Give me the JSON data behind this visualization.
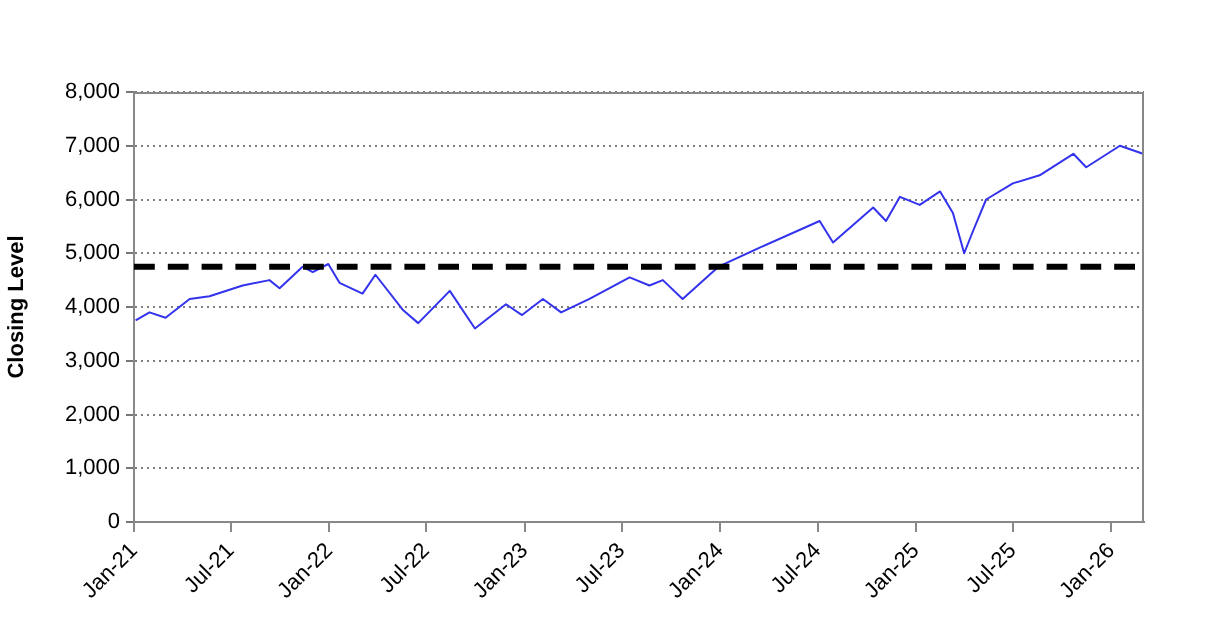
{
  "chart_data": {
    "type": "line",
    "ylabel": "Closing Level",
    "x": [
      "2021-01-04",
      "2021-01-30",
      "2021-03-01",
      "2021-04-15",
      "2021-05-22",
      "2021-07-23",
      "2021-09-11",
      "2021-09-30",
      "2021-11-12",
      "2021-12-01",
      "2021-12-30",
      "2022-01-20",
      "2022-03-04",
      "2022-03-28",
      "2022-05-18",
      "2022-06-16",
      "2022-08-14",
      "2022-09-30",
      "2022-11-27",
      "2022-12-27",
      "2023-02-04",
      "2023-03-10",
      "2023-05-02",
      "2023-07-16",
      "2023-08-22",
      "2023-09-16",
      "2023-10-23",
      "2023-12-29",
      "2024-03-14",
      "2024-07-05",
      "2024-07-30",
      "2024-10-13",
      "2024-11-06",
      "2024-12-02",
      "2025-01-08",
      "2025-02-15",
      "2025-03-11",
      "2025-04-01",
      "2025-04-17",
      "2025-05-12",
      "2025-07-01",
      "2025-08-20",
      "2025-10-22",
      "2025-11-15",
      "2026-01-17",
      "2026-03-01"
    ],
    "series": [
      {
        "color": "#3333ee",
        "values": [
          3750,
          3900,
          3800,
          4150,
          4200,
          4400,
          4500,
          4350,
          4750,
          4650,
          4800,
          4450,
          4250,
          4600,
          3950,
          3700,
          4300,
          3600,
          4050,
          3850,
          4150,
          3900,
          4150,
          4550,
          4400,
          4500,
          4150,
          4750,
          5100,
          5600,
          5200,
          5850,
          5600,
          6050,
          5900,
          6150,
          5750,
          5000,
          5400,
          6000,
          6300,
          6450,
          6850,
          6600,
          7000,
          6850
        ]
      }
    ],
    "xlim": [
      "2021-01-01",
      "2026-03-03"
    ],
    "xticks": [
      {
        "value": "2021-01-01",
        "label": "Jan-21"
      },
      {
        "value": "2021-07-01",
        "label": "Jul-21"
      },
      {
        "value": "2022-01-01",
        "label": "Jan-22"
      },
      {
        "value": "2022-07-01",
        "label": "Jul-22"
      },
      {
        "value": "2023-01-01",
        "label": "Jan-23"
      },
      {
        "value": "2023-07-01",
        "label": "Jul-23"
      },
      {
        "value": "2024-01-01",
        "label": "Jan-24"
      },
      {
        "value": "2024-07-01",
        "label": "Jul-24"
      },
      {
        "value": "2025-01-01",
        "label": "Jan-25"
      },
      {
        "value": "2025-07-01",
        "label": "Jul-25"
      },
      {
        "value": "2026-01-01",
        "label": "Jan-26"
      }
    ],
    "ylim": [
      0,
      8000
    ],
    "yticks": [
      0,
      {
        "value": 1000,
        "label": "1,000"
      },
      {
        "value": 2000,
        "label": "2,000"
      },
      {
        "value": 3000,
        "label": "3,000"
      },
      {
        "value": 4000,
        "label": "4,000"
      },
      {
        "value": 5000,
        "label": "5,000"
      },
      {
        "value": 6000,
        "label": "6,000"
      },
      {
        "value": 7000,
        "label": "7,000"
      },
      {
        "value": 8000,
        "label": "8,000"
      }
    ],
    "grid": "y",
    "legend": false,
    "marker": "none",
    "line_style": "solid",
    "ref_lines": [
      {
        "axis": "y",
        "value": 4750,
        "color": "#000000",
        "line_style": "dashed"
      }
    ]
  }
}
